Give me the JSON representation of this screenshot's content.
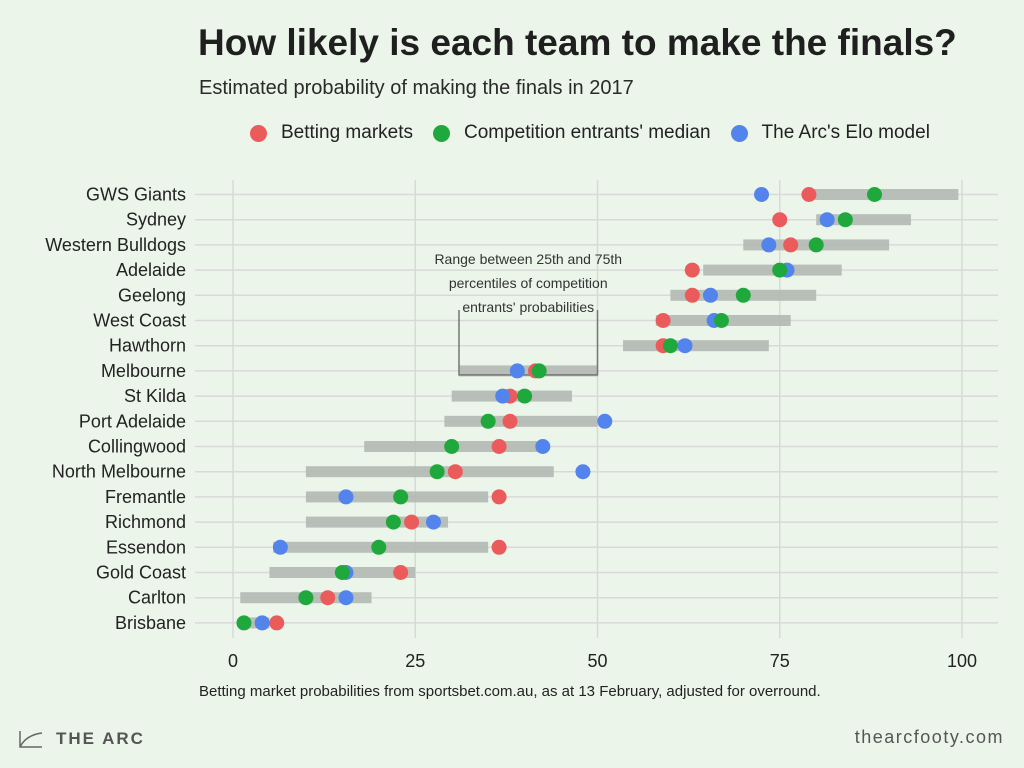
{
  "header": {
    "title": "How likely is each team to make the finals?",
    "subtitle": "Estimated probability of making the finals in 2017"
  },
  "legend": {
    "items": [
      {
        "label": "Betting markets",
        "color": "#eb5b5b"
      },
      {
        "label": "Competition entrants' median",
        "color": "#1fa83c"
      },
      {
        "label": "The Arc's Elo model",
        "color": "#5383ec"
      }
    ]
  },
  "annotation": {
    "lines": [
      "Range between 25th and 75th",
      "percentiles of competition",
      "entrants' probabilities"
    ]
  },
  "footnote": "Betting market probabilities from sportsbet.com.au, as at 13 February, adjusted for overround.",
  "footer": {
    "brand": "THE ARC",
    "website": "thearcfooty.com"
  },
  "colors": {
    "background": "#ebf5ea",
    "grid": "#d9d9d9",
    "range_bar": "#b3b8b3",
    "betting": "#eb5b5b",
    "median": "#1fa83c",
    "elo": "#5383ec"
  },
  "chart_data": {
    "type": "scatter",
    "title": "How likely is each team to make the finals?",
    "subtitle": "Estimated probability of making the finals in 2017",
    "xlim": [
      0,
      100
    ],
    "xticks": [
      0,
      25,
      50,
      75,
      100
    ],
    "grid": true,
    "legend_position": "top",
    "categories": [
      "GWS Giants",
      "Sydney",
      "Western Bulldogs",
      "Adelaide",
      "Geelong",
      "West Coast",
      "Hawthorn",
      "Melbourne",
      "St Kilda",
      "Port Adelaide",
      "Collingwood",
      "North Melbourne",
      "Fremantle",
      "Richmond",
      "Essendon",
      "Gold Coast",
      "Carlton",
      "Brisbane"
    ],
    "ranges": [
      [
        79,
        99.5
      ],
      [
        80,
        93
      ],
      [
        70,
        90
      ],
      [
        64.5,
        83.5
      ],
      [
        60,
        80
      ],
      [
        58,
        76.5
      ],
      [
        53.5,
        73.5
      ],
      [
        31,
        50
      ],
      [
        30,
        46.5
      ],
      [
        29,
        50
      ],
      [
        18,
        42
      ],
      [
        10,
        44
      ],
      [
        10,
        35
      ],
      [
        10,
        29.5
      ],
      [
        5.5,
        35
      ],
      [
        5,
        25
      ],
      [
        1,
        19
      ],
      [
        1,
        5
      ]
    ],
    "series": [
      {
        "name": "Betting markets",
        "values": [
          79,
          75,
          76.5,
          63,
          63,
          59,
          59,
          41.5,
          38,
          38,
          36.5,
          30.5,
          36.5,
          24.5,
          36.5,
          23,
          13,
          6
        ]
      },
      {
        "name": "Competition entrants' median",
        "values": [
          88,
          84,
          80,
          75,
          70,
          67,
          60,
          42,
          40,
          35,
          30,
          28,
          23,
          22,
          20,
          15,
          10,
          1.5
        ]
      },
      {
        "name": "The Arc's Elo model",
        "values": [
          72.5,
          81.5,
          73.5,
          76,
          65.5,
          66,
          62,
          39,
          37,
          51,
          42.5,
          48,
          15.5,
          27.5,
          6.5,
          15.5,
          15.5,
          4
        ]
      }
    ]
  }
}
